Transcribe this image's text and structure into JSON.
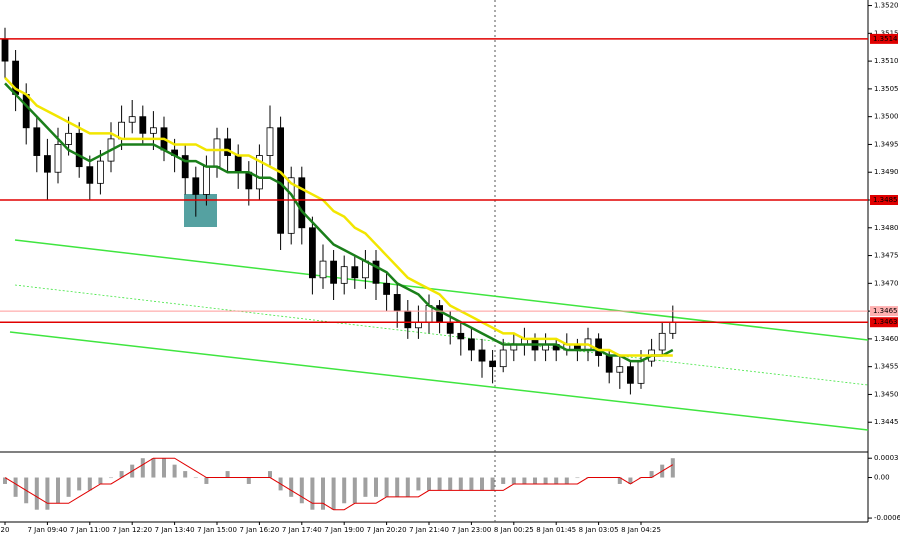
{
  "chart_data": {
    "type": "candlestick",
    "categories": [
      "20",
      null,
      null,
      null,
      "7 Jan 09:40",
      null,
      null,
      null,
      "7 Jan 11:00",
      null,
      null,
      null,
      "7 Jan 12:20",
      null,
      null,
      null,
      "7 Jan 13:40",
      null,
      null,
      null,
      "7 Jan 15:00",
      null,
      null,
      null,
      "7 Jan 16:20",
      null,
      null,
      null,
      "7 Jan 17:40",
      null,
      null,
      null,
      "7 Jan 19:00",
      null,
      null,
      null,
      "7 Jan 20:20",
      null,
      null,
      null,
      "7 Jan 21:40",
      null,
      null,
      null,
      "7 Jan 23:00",
      null,
      null,
      null,
      "8 Jan 00:25",
      null,
      null,
      null,
      "8 Jan 01:45",
      null,
      null,
      null,
      "8 Jan 03:05",
      null,
      null,
      null,
      "8 Jan 04:25",
      null,
      null,
      null
    ],
    "open": [
      1.3514,
      1.351,
      1.3504,
      1.3498,
      1.3493,
      1.349,
      1.3495,
      1.3497,
      1.3491,
      1.3488,
      1.3492,
      1.3496,
      1.3499,
      1.35,
      1.3497,
      1.3498,
      1.3494,
      1.3493,
      1.3489,
      1.3486,
      1.3491,
      1.3496,
      1.3493,
      1.349,
      1.3487,
      1.3493,
      1.3498,
      1.3479,
      1.3489,
      1.348,
      1.3471,
      1.3474,
      1.347,
      1.3473,
      1.3471,
      1.3474,
      1.347,
      1.3468,
      1.3465,
      1.3462,
      1.3463,
      1.3466,
      1.3463,
      1.3461,
      1.346,
      1.3458,
      1.3456,
      1.3455,
      1.3458,
      1.3459,
      1.346,
      1.3458,
      1.3459,
      1.3458,
      1.3459,
      1.3458,
      1.346,
      1.3457,
      1.3454,
      1.3455,
      1.3452,
      1.3456,
      1.3458,
      1.3461
    ],
    "high": [
      1.3516,
      1.3512,
      1.3506,
      1.35,
      1.3496,
      1.3498,
      1.35,
      1.3499,
      1.3493,
      1.3494,
      1.3499,
      1.3502,
      1.3503,
      1.3502,
      1.3501,
      1.35,
      1.3496,
      1.3495,
      1.3491,
      1.3493,
      1.3498,
      1.3498,
      1.3495,
      1.3492,
      1.3495,
      1.3502,
      1.35,
      1.3491,
      1.3491,
      1.3482,
      1.3477,
      1.3476,
      1.3475,
      1.3475,
      1.3476,
      1.3476,
      1.3472,
      1.347,
      1.3467,
      1.3466,
      1.3468,
      1.3467,
      1.3465,
      1.3463,
      1.3462,
      1.346,
      1.3458,
      1.346,
      1.3461,
      1.3462,
      1.3461,
      1.3461,
      1.346,
      1.3461,
      1.346,
      1.3462,
      1.3461,
      1.3458,
      1.3457,
      1.3456,
      1.3458,
      1.346,
      1.3463,
      1.3466
    ],
    "low": [
      1.3507,
      1.3501,
      1.3495,
      1.349,
      1.3485,
      1.3488,
      1.3493,
      1.3489,
      1.3485,
      1.3486,
      1.349,
      1.3494,
      1.3497,
      1.3495,
      1.3494,
      1.3492,
      1.349,
      1.3486,
      1.3482,
      1.3484,
      1.3489,
      1.349,
      1.3487,
      1.3484,
      1.3485,
      1.3491,
      1.3476,
      1.3477,
      1.3477,
      1.3468,
      1.3469,
      1.3467,
      1.3468,
      1.3469,
      1.3469,
      1.3467,
      1.3465,
      1.3462,
      1.346,
      1.346,
      1.3461,
      1.3461,
      1.3459,
      1.3457,
      1.3456,
      1.3453,
      1.3452,
      1.3454,
      1.3456,
      1.3457,
      1.3456,
      1.3456,
      1.3456,
      1.3457,
      1.3456,
      1.3456,
      1.3455,
      1.3452,
      1.3451,
      1.345,
      1.3451,
      1.3455,
      1.3457,
      1.346
    ],
    "close": [
      1.351,
      1.3504,
      1.3498,
      1.3493,
      1.349,
      1.3495,
      1.3497,
      1.3491,
      1.3488,
      1.3492,
      1.3496,
      1.3499,
      1.35,
      1.3497,
      1.3498,
      1.3494,
      1.3493,
      1.3489,
      1.3486,
      1.3491,
      1.3496,
      1.3493,
      1.349,
      1.3487,
      1.3493,
      1.3498,
      1.3479,
      1.3489,
      1.348,
      1.3471,
      1.3474,
      1.347,
      1.3473,
      1.3471,
      1.3474,
      1.347,
      1.3468,
      1.3465,
      1.3462,
      1.3463,
      1.3466,
      1.3463,
      1.3461,
      1.346,
      1.3458,
      1.3456,
      1.3455,
      1.3458,
      1.3459,
      1.346,
      1.3458,
      1.3459,
      1.3458,
      1.3459,
      1.3458,
      1.346,
      1.3457,
      1.3454,
      1.3455,
      1.3452,
      1.3456,
      1.3458,
      1.3461,
      1.3463
    ],
    "series": [
      {
        "color": "#1a7f1a",
        "values": [
          1.3506,
          1.3504,
          1.3502,
          1.35,
          1.3498,
          1.3496,
          1.3494,
          1.3493,
          1.3492,
          1.3493,
          1.3494,
          1.3495,
          1.3495,
          1.3495,
          1.3495,
          1.3494,
          1.3493,
          1.3492,
          1.3492,
          1.3491,
          1.3491,
          1.349,
          1.349,
          1.349,
          1.3489,
          1.3489,
          1.3488,
          1.3486,
          1.3483,
          1.3481,
          1.3479,
          1.3477,
          1.3476,
          1.3475,
          1.3474,
          1.3473,
          1.3472,
          1.347,
          1.3469,
          1.3468,
          1.3466,
          1.3465,
          1.3464,
          1.3463,
          1.3462,
          1.3461,
          1.346,
          1.3459,
          1.3459,
          1.3459,
          1.3459,
          1.3459,
          1.3459,
          1.3458,
          1.3458,
          1.3458,
          1.3458,
          1.3457,
          1.3457,
          1.3456,
          1.3456,
          1.3457,
          1.3457,
          1.3458
        ]
      },
      {
        "color": "#f2e600",
        "values": [
          1.3507,
          1.3505,
          1.3504,
          1.3502,
          1.3501,
          1.35,
          1.3499,
          1.3498,
          1.3497,
          1.3497,
          1.3497,
          1.3496,
          1.3496,
          1.3496,
          1.3496,
          1.3496,
          1.3495,
          1.3495,
          1.3495,
          1.3494,
          1.3494,
          1.3494,
          1.3493,
          1.3493,
          1.3492,
          1.3491,
          1.349,
          1.3488,
          1.3487,
          1.3486,
          1.3485,
          1.3483,
          1.3482,
          1.348,
          1.3479,
          1.3477,
          1.3475,
          1.3473,
          1.3471,
          1.347,
          1.3469,
          1.3468,
          1.3466,
          1.3465,
          1.3464,
          1.3463,
          1.3462,
          1.3461,
          1.3461,
          1.346,
          1.346,
          1.346,
          1.346,
          1.3459,
          1.3459,
          1.3459,
          1.3458,
          1.3458,
          1.3457,
          1.3457,
          1.3457,
          1.3457,
          1.3457,
          1.3457
        ]
      }
    ],
    "ylim": [
      1.344,
      1.3521
    ],
    "yticks": [
      1.3445,
      {
        "value": 1.345,
        "label": "1.3450"
      },
      1.3455,
      {
        "value": 1.346,
        "label": "1.3460"
      },
      1.3465,
      {
        "value": 1.347,
        "label": "1.3470"
      },
      1.3475,
      {
        "value": 1.348,
        "label": "1.3480"
      },
      1.3485,
      {
        "value": 1.349,
        "label": "1.3490"
      },
      1.3495,
      {
        "value": 1.35,
        "label": "1.3500"
      },
      1.3505,
      {
        "value": 1.351,
        "label": "1.3510"
      },
      1.3515,
      {
        "value": 1.352,
        "label": "1.3520"
      }
    ],
    "levels": [
      1.3514,
      1.3485,
      1.3463
    ],
    "level_color": "#e00000",
    "current_price": 1.3465,
    "macd": {
      "histogram": [
        -0.0001,
        -0.0003,
        -0.0004,
        -0.0005,
        -0.0005,
        -0.0004,
        -0.0003,
        -0.0002,
        -0.0002,
        -0.0001,
        0,
        0.0001,
        0.0002,
        0.0003,
        0.0003,
        0.0003,
        0.0002,
        0.0001,
        0,
        -0.0001,
        0,
        0.0001,
        0,
        -0.0001,
        0,
        0.0001,
        -0.0002,
        -0.0003,
        -0.0004,
        -0.0005,
        -0.0005,
        -0.0005,
        -0.0004,
        -0.0004,
        -0.0003,
        -0.0003,
        -0.0003,
        -0.0003,
        -0.0003,
        -0.0002,
        -0.0002,
        -0.0002,
        -0.0002,
        -0.0002,
        -0.0002,
        -0.0002,
        -0.0002,
        -0.0001,
        -0.0001,
        -0.0001,
        -0.0001,
        -0.0001,
        -0.0001,
        -0.0001,
        0,
        0,
        0,
        0,
        -0.0001,
        -0.0001,
        0,
        0.0001,
        0.0002,
        0.0003
      ],
      "signal": [
        0,
        -0.0001,
        -0.0002,
        -0.0003,
        -0.0004,
        -0.0004,
        -0.0004,
        -0.0003,
        -0.0002,
        -0.0001,
        -0.0001,
        0,
        0.0001,
        0.0002,
        0.0003,
        0.0003,
        0.0003,
        0.0002,
        0.0001,
        0,
        0,
        0,
        0,
        0,
        0,
        0,
        -0.0001,
        -0.0002,
        -0.0003,
        -0.0004,
        -0.0004,
        -0.0005,
        -0.0005,
        -0.0004,
        -0.0004,
        -0.0004,
        -0.0003,
        -0.0003,
        -0.0003,
        -0.0003,
        -0.0002,
        -0.0002,
        -0.0002,
        -0.0002,
        -0.0002,
        -0.0002,
        -0.0002,
        -0.0002,
        -0.0001,
        -0.0001,
        -0.0001,
        -0.0001,
        -0.0001,
        -0.0001,
        -0.0001,
        0,
        0,
        0,
        0,
        -0.0001,
        0,
        0,
        0.0001,
        0.0002
      ],
      "histogram_color": "#a0a0a0",
      "signal_color": "#e00000",
      "ylim": [
        -0.00066,
        0.00035
      ],
      "yticks": [
        0.0003,
        {
          "value": 0,
          "label": "0.00"
        },
        -0.00063
      ]
    }
  }
}
